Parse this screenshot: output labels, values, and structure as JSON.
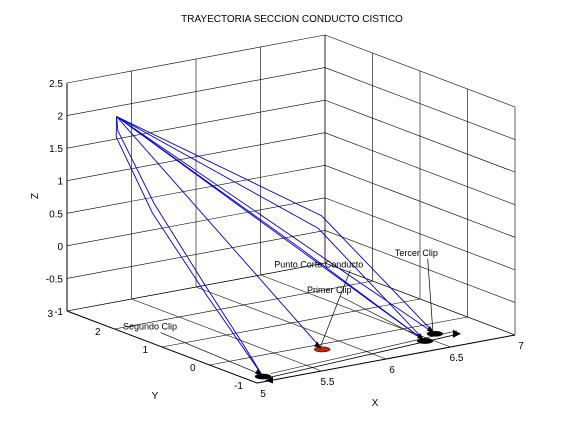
{
  "chart_data": {
    "type": "line3d",
    "title": "TRAYECTORIA SECCION CONDUCTO CISTICO",
    "xlabel": "X",
    "ylabel": "Y",
    "zlabel": "Z",
    "xlim": [
      5,
      7
    ],
    "ylim": [
      -1,
      3
    ],
    "zlim": [
      -1,
      2.5
    ],
    "xticks": [
      "5",
      "5.5",
      "6",
      "6.5",
      "7"
    ],
    "yticks": [
      "-1",
      "0",
      "1",
      "2",
      "3"
    ],
    "zticks": [
      "-1",
      "-0.5",
      "0",
      "0.5",
      "1",
      "1.5",
      "2",
      "2.5"
    ],
    "grid": true,
    "apex": {
      "x": 5.2,
      "y": 2.5,
      "z": 2.05
    },
    "series": [
      {
        "x": [
          5.2,
          5.05,
          5.0,
          5.05,
          5.1,
          5.12
        ],
        "y": [
          2.5,
          2.1,
          1.2,
          0.2,
          -0.5,
          -0.8
        ],
        "z": [
          2.05,
          1.9,
          1.0,
          0.0,
          -0.7,
          -1.0
        ]
      },
      {
        "x": [
          5.2,
          5.1,
          5.05,
          5.08,
          5.11,
          5.12
        ],
        "y": [
          2.5,
          2.2,
          1.3,
          0.3,
          -0.4,
          -0.8
        ],
        "z": [
          2.05,
          1.95,
          1.1,
          0.1,
          -0.6,
          -1.0
        ]
      },
      {
        "x": [
          5.2,
          5.8
        ],
        "y": [
          2.5,
          -0.2
        ],
        "z": [
          2.05,
          -1.0
        ]
      },
      {
        "x": [
          5.2,
          6.45
        ],
        "y": [
          2.5,
          -0.6
        ],
        "z": [
          2.05,
          -1.0
        ]
      },
      {
        "x": [
          5.2,
          6.0,
          6.45
        ],
        "y": [
          2.5,
          0.8,
          -0.6
        ],
        "z": [
          2.05,
          0.2,
          -1.0
        ]
      },
      {
        "x": [
          5.2,
          6.1,
          6.45
        ],
        "y": [
          2.5,
          0.7,
          -0.6
        ],
        "z": [
          2.05,
          0.5,
          -1.0
        ]
      },
      {
        "x": [
          5.2,
          6.6
        ],
        "y": [
          2.5,
          -0.4
        ],
        "z": [
          2.05,
          -1.0
        ]
      },
      {
        "x": [
          5.2,
          6.2,
          6.6
        ],
        "y": [
          2.5,
          0.9,
          -0.4
        ],
        "z": [
          2.05,
          0.6,
          -1.0
        ]
      }
    ],
    "clip_points": [
      {
        "name": "Segundo Clip",
        "color": "#000000",
        "x": 5.12,
        "y": -0.8,
        "z": -1.0
      },
      {
        "name": "Punto Corte Conducto",
        "color": "#cc2200",
        "x": 5.8,
        "y": -0.2,
        "z": -1.0
      },
      {
        "name": "Primer Clip",
        "color": "#000000",
        "x": 6.45,
        "y": -0.6,
        "z": -1.0
      },
      {
        "name": "Tercer Clip",
        "color": "#000000",
        "x": 6.6,
        "y": -0.4,
        "z": -1.0
      }
    ],
    "annotations": [
      {
        "text": "Segundo Clip",
        "target": "Segundo Clip"
      },
      {
        "text": "Punto Corte Conducto",
        "target": "Punto Corte Conducto"
      },
      {
        "text": "Primer Clip",
        "target": "Primer Clip"
      },
      {
        "text": "Tercer Clip",
        "target": "Tercer Clip"
      }
    ],
    "line_color": "#0000cc",
    "guide_color": "#000000"
  }
}
